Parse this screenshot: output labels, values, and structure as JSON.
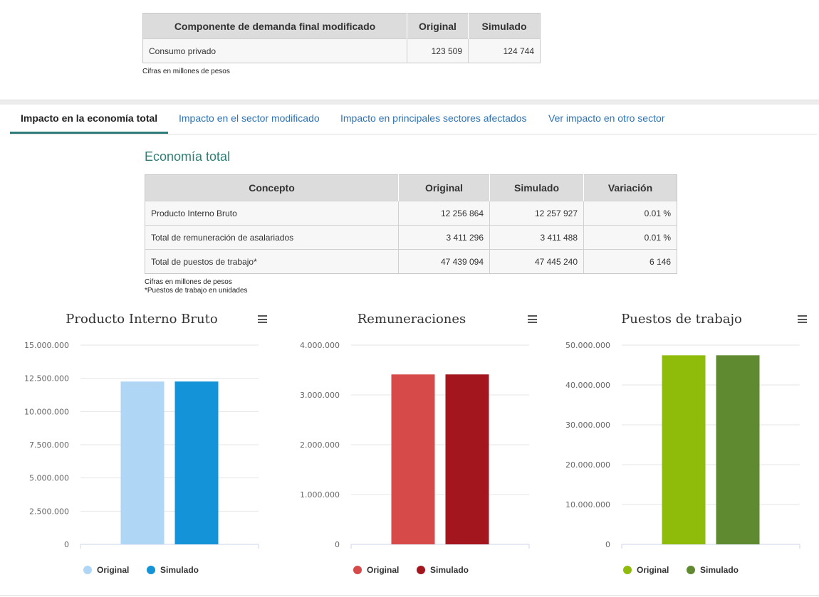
{
  "demand_table": {
    "headers": [
      "Componente de demanda final modificado",
      "Original",
      "Simulado"
    ],
    "row": {
      "concept": "Consumo privado",
      "original": "123 509",
      "simulado": "124 744"
    },
    "note": "Cifras en millones de pesos"
  },
  "tabs": [
    {
      "label": "Impacto en la economía total",
      "active": true
    },
    {
      "label": "Impacto en el sector modificado",
      "active": false
    },
    {
      "label": "Impacto en principales sectores afectados",
      "active": false
    },
    {
      "label": "Ver impacto en otro sector",
      "active": false
    }
  ],
  "section_title": "Economía total",
  "economy_table": {
    "headers": [
      "Concepto",
      "Original",
      "Simulado",
      "Variación"
    ],
    "rows": [
      {
        "concept": "Producto Interno Bruto",
        "original": "12 256 864",
        "simulado": "12 257 927",
        "variacion": "0.01 %"
      },
      {
        "concept": "Total de remuneración de asalariados",
        "original": "3 411 296",
        "simulado": "3 411 488",
        "variacion": "0.01 %"
      },
      {
        "concept": "Total de puestos de trabajo*",
        "original": "47 439 094",
        "simulado": "47 445 240",
        "variacion": "6 146"
      }
    ],
    "notes": [
      "Cifras en millones de pesos",
      "*Puestos de trabajo en unidades"
    ]
  },
  "chart_data": [
    {
      "type": "bar",
      "title": "Producto Interno Bruto",
      "categories": [
        "Original",
        "Simulado"
      ],
      "values": [
        12256864,
        12257927
      ],
      "colors": [
        "#b0d6f6",
        "#1493d9"
      ],
      "ylim": [
        0,
        15000000
      ],
      "yticks": [
        0,
        2500000,
        5000000,
        7500000,
        10000000,
        12500000,
        15000000
      ],
      "ytick_labels": [
        "0",
        "2.500.000",
        "5.000.000",
        "7.500.000",
        "10.000.000",
        "12.500.000",
        "15.000.000"
      ],
      "legend": [
        {
          "label": "Original",
          "color": "#b0d6f6"
        },
        {
          "label": "Simulado",
          "color": "#1493d9"
        }
      ],
      "grid": true,
      "legend_position": "bottom"
    },
    {
      "type": "bar",
      "title": "Remuneraciones",
      "categories": [
        "Original",
        "Simulado"
      ],
      "values": [
        3411296,
        3411488
      ],
      "colors": [
        "#d64a4a",
        "#a3161d"
      ],
      "ylim": [
        0,
        4000000
      ],
      "yticks": [
        0,
        1000000,
        2000000,
        3000000,
        4000000
      ],
      "ytick_labels": [
        "0",
        "1.000.000",
        "2.000.000",
        "3.000.000",
        "4.000.000"
      ],
      "legend": [
        {
          "label": "Original",
          "color": "#d64a4a"
        },
        {
          "label": "Simulado",
          "color": "#a3161d"
        }
      ],
      "grid": true,
      "legend_position": "bottom"
    },
    {
      "type": "bar",
      "title": "Puestos de trabajo",
      "categories": [
        "Original",
        "Simulado"
      ],
      "values": [
        47439094,
        47445240
      ],
      "colors": [
        "#8fbb0b",
        "#5f8a30"
      ],
      "ylim": [
        0,
        50000000
      ],
      "yticks": [
        0,
        10000000,
        20000000,
        30000000,
        40000000,
        50000000
      ],
      "ytick_labels": [
        "0",
        "10.000.000",
        "20.000.000",
        "30.000.000",
        "40.000.000",
        "50.000.000"
      ],
      "legend": [
        {
          "label": "Original",
          "color": "#8fbb0b"
        },
        {
          "label": "Simulado",
          "color": "#5f8a30"
        }
      ],
      "grid": true,
      "legend_position": "bottom"
    }
  ]
}
